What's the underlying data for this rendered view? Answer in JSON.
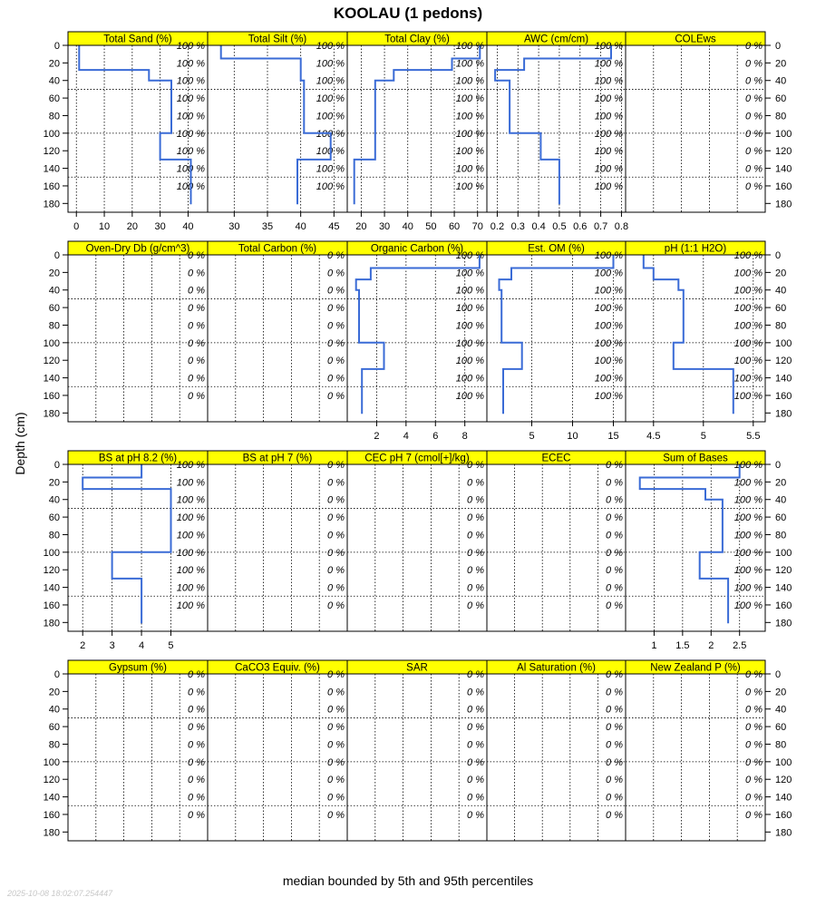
{
  "title": "KOOLAU (1 pedons)",
  "xlabel": "median bounded by 5th and 95th percentiles",
  "ylabel": "Depth (cm)",
  "timestamp": "2025-10-08 18:02:07.254447",
  "colors": {
    "strip": "#ffff00",
    "line": "#3a6bd6",
    "grid": "#000000"
  },
  "chart_data": {
    "type": "line",
    "layout": {
      "columns": 5,
      "rows": 4
    },
    "depth_ticks": [
      0,
      20,
      40,
      60,
      80,
      100,
      120,
      140,
      160,
      180
    ],
    "depth_range": [
      0,
      190
    ],
    "percent_label_depths": [
      0,
      20,
      40,
      60,
      80,
      100,
      120,
      140,
      160
    ],
    "panels": [
      {
        "name": "Total Sand (%)",
        "xlim": [
          -3,
          47
        ],
        "xticks": [
          0,
          10,
          20,
          30,
          40
        ],
        "data_pct": "100 %",
        "depth_breaks": [
          0,
          15,
          28,
          40,
          100,
          130,
          181
        ],
        "values": [
          1,
          1,
          26,
          34,
          30,
          41
        ]
      },
      {
        "name": "Total Silt (%)",
        "xlim": [
          26,
          47
        ],
        "xticks": [
          30,
          35,
          40,
          45
        ],
        "data_pct": "100 %",
        "depth_breaks": [
          0,
          15,
          28,
          40,
          100,
          130,
          181
        ],
        "values": [
          28,
          40,
          40,
          40.5,
          44.5,
          39.5
        ]
      },
      {
        "name": "Total Clay (%)",
        "xlim": [
          14,
          74
        ],
        "xticks": [
          20,
          30,
          40,
          50,
          60,
          70
        ],
        "data_pct": "100 %",
        "depth_breaks": [
          0,
          15,
          28,
          40,
          100,
          130,
          181
        ],
        "values": [
          71,
          59,
          34,
          26,
          26,
          17
        ]
      },
      {
        "name": "AWC (cm/cm)",
        "xlim": [
          0.15,
          0.82
        ],
        "xticks": [
          0.2,
          0.3,
          0.4,
          0.5,
          0.6,
          0.7,
          0.8
        ],
        "data_pct": "100 %",
        "depth_breaks": [
          0,
          15,
          28,
          40,
          100,
          130,
          181
        ],
        "values": [
          0.75,
          0.33,
          0.19,
          0.26,
          0.41,
          0.5
        ]
      },
      {
        "name": "COLEws",
        "xlim": null,
        "xticks": [],
        "data_pct": "0 %",
        "depth_breaks": [],
        "values": []
      },
      {
        "name": "Oven-Dry Db (g/cm^3)",
        "xlim": null,
        "xticks": [],
        "data_pct": "0 %",
        "depth_breaks": [],
        "values": []
      },
      {
        "name": "Total Carbon (%)",
        "xlim": null,
        "xticks": [],
        "data_pct": "0 %",
        "depth_breaks": [],
        "values": []
      },
      {
        "name": "Organic Carbon (%)",
        "xlim": [
          0,
          9.5
        ],
        "xticks": [
          2,
          4,
          6,
          8
        ],
        "data_pct": "100 %",
        "depth_breaks": [
          0,
          15,
          28,
          40,
          100,
          130,
          181
        ],
        "values": [
          9,
          1.6,
          0.6,
          0.8,
          2.5,
          1
        ]
      },
      {
        "name": "Est. OM (%)",
        "xlim": [
          -0.5,
          16.5
        ],
        "xticks": [
          5,
          10,
          15
        ],
        "data_pct": "100 %",
        "depth_breaks": [
          0,
          15,
          28,
          40,
          100,
          130,
          181
        ],
        "values": [
          15,
          2.5,
          1,
          1.3,
          3.8,
          1.5
        ]
      },
      {
        "name": "pH (1:1 H2O)",
        "xlim": [
          4.22,
          5.62
        ],
        "xticks": [
          4.5,
          5.0,
          5.5
        ],
        "data_pct": "100 %",
        "depth_breaks": [
          0,
          15,
          28,
          40,
          100,
          130,
          181
        ],
        "values": [
          4.4,
          4.5,
          4.75,
          4.8,
          4.7,
          5.3
        ]
      },
      {
        "name": "BS at pH 8.2 (%)",
        "xlim": [
          1.5,
          6.25
        ],
        "xticks": [
          2,
          3,
          4,
          5
        ],
        "data_pct": "100 %",
        "depth_breaks": [
          0,
          15,
          28,
          40,
          100,
          130,
          181
        ],
        "values": [
          4,
          2,
          5,
          5,
          3,
          4
        ]
      },
      {
        "name": "BS at pH 7 (%)",
        "xlim": null,
        "xticks": [],
        "data_pct": "0 %",
        "depth_breaks": [],
        "values": []
      },
      {
        "name": "CEC pH 7 (cmol[+]/kg)",
        "xlim": null,
        "xticks": [],
        "data_pct": "0 %",
        "depth_breaks": [],
        "values": []
      },
      {
        "name": "ECEC",
        "xlim": null,
        "xticks": [],
        "data_pct": "0 %",
        "depth_breaks": [],
        "values": []
      },
      {
        "name": "Sum of Bases",
        "xlim": [
          0.5,
          2.95
        ],
        "xticks": [
          1.0,
          1.5,
          2.0,
          2.5
        ],
        "data_pct": "100 %",
        "depth_breaks": [
          0,
          15,
          28,
          40,
          100,
          130,
          181
        ],
        "values": [
          2.5,
          0.75,
          1.9,
          2.2,
          1.8,
          2.3
        ]
      },
      {
        "name": "Gypsum (%)",
        "xlim": null,
        "xticks": [],
        "data_pct": "0 %",
        "depth_breaks": [],
        "values": []
      },
      {
        "name": "CaCO3 Equiv. (%)",
        "xlim": null,
        "xticks": [],
        "data_pct": "0 %",
        "depth_breaks": [],
        "values": []
      },
      {
        "name": "SAR",
        "xlim": null,
        "xticks": [],
        "data_pct": "0 %",
        "depth_breaks": [],
        "values": []
      },
      {
        "name": "Al Saturation (%)",
        "xlim": null,
        "xticks": [],
        "data_pct": "0 %",
        "depth_breaks": [],
        "values": []
      },
      {
        "name": "New Zealand P (%)",
        "xlim": null,
        "xticks": [],
        "data_pct": "0 %",
        "depth_breaks": [],
        "values": []
      }
    ]
  }
}
